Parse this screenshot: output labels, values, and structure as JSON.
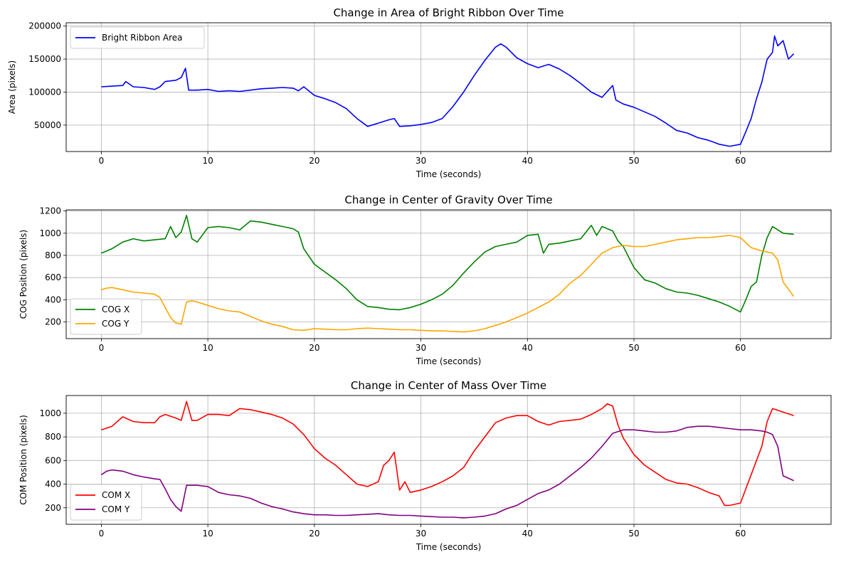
{
  "chart_data": [
    {
      "type": "line",
      "title": "Change in Area of Bright Ribbon Over Time",
      "xlabel": "Time (seconds)",
      "ylabel": "Area (pixels)",
      "xlim": [
        -3.3,
        68.5
      ],
      "ylim": [
        10000,
        205000
      ],
      "xticks": [
        0,
        10,
        20,
        30,
        40,
        50,
        60
      ],
      "xtick_labels": [
        "0",
        "10",
        "20",
        "30",
        "40",
        "50",
        "60"
      ],
      "yticks": [
        50000,
        100000,
        150000,
        200000
      ],
      "ytick_labels": [
        "50000",
        "100000",
        "150000",
        "200000"
      ],
      "grid": true,
      "legend_position": "upper-left",
      "series": [
        {
          "name": "Bright Ribbon Area",
          "color": "#0000ff",
          "x": [
            0,
            1,
            2,
            2.3,
            3,
            4,
            5,
            5.5,
            6,
            7,
            7.5,
            7.9,
            8.2,
            9,
            10,
            11,
            12,
            13,
            14,
            15,
            16,
            17,
            18,
            18.5,
            19,
            20,
            21,
            22,
            23,
            24,
            25,
            26,
            27,
            27.5,
            28,
            29,
            30,
            31,
            32,
            33,
            34,
            35,
            36,
            37,
            37.5,
            38,
            39,
            40,
            41,
            42,
            43,
            44,
            45,
            46,
            47,
            48,
            48.3,
            49,
            50,
            51,
            52,
            53,
            54,
            55,
            56,
            57,
            58,
            59,
            60,
            60.5,
            61,
            61.5,
            62,
            62.5,
            63,
            63.2,
            63.5,
            64,
            64.5,
            65
          ],
          "y": [
            108000,
            109000,
            110000,
            116000,
            108000,
            107000,
            104000,
            108000,
            116000,
            118000,
            122000,
            136000,
            103000,
            103000,
            104000,
            101000,
            102000,
            101000,
            103000,
            105000,
            106000,
            107000,
            106000,
            102000,
            108000,
            95000,
            90000,
            84000,
            75000,
            60000,
            48000,
            53000,
            58000,
            60000,
            48000,
            49000,
            51000,
            54000,
            60000,
            78000,
            100000,
            125000,
            148000,
            168000,
            173000,
            168000,
            152000,
            143000,
            137000,
            142000,
            135000,
            125000,
            113000,
            100000,
            92000,
            110000,
            88000,
            82000,
            77000,
            70000,
            63000,
            53000,
            42000,
            38000,
            31000,
            27000,
            21000,
            18000,
            21000,
            40000,
            60000,
            90000,
            115000,
            150000,
            160000,
            185000,
            170000,
            178000,
            150000,
            158000
          ]
        }
      ]
    },
    {
      "type": "line",
      "title": "Change in Center of Gravity Over Time",
      "xlabel": "Time (seconds)",
      "ylabel": "COG Position (pixels)",
      "xlim": [
        -3.3,
        68.5
      ],
      "ylim": [
        50,
        1210
      ],
      "xticks": [
        0,
        10,
        20,
        30,
        40,
        50,
        60
      ],
      "xtick_labels": [
        "0",
        "10",
        "20",
        "30",
        "40",
        "50",
        "60"
      ],
      "yticks": [
        200,
        400,
        600,
        800,
        1000,
        1200
      ],
      "ytick_labels": [
        "200",
        "400",
        "600",
        "800",
        "1000",
        "1200"
      ],
      "grid": true,
      "legend_position": "lower-left",
      "series": [
        {
          "name": "COG X",
          "color": "#008000",
          "x": [
            0,
            1,
            2,
            3,
            4,
            5,
            6,
            6.5,
            7,
            7.5,
            8,
            8.5,
            9,
            10,
            11,
            12,
            13,
            14,
            15,
            16,
            17,
            18,
            18.5,
            19,
            20,
            21,
            22,
            23,
            24,
            25,
            26,
            27,
            28,
            29,
            30,
            31,
            32,
            33,
            34,
            35,
            36,
            37,
            38,
            39,
            40,
            41,
            41.5,
            42,
            43,
            44,
            45,
            46,
            46.5,
            47,
            48,
            48.5,
            49,
            50,
            51,
            52,
            53,
            54,
            55,
            56,
            57,
            58,
            59,
            60,
            60.5,
            61,
            61.5,
            62,
            62.5,
            63,
            64,
            65
          ],
          "y": [
            820,
            860,
            920,
            950,
            930,
            940,
            950,
            1060,
            960,
            1010,
            1160,
            950,
            920,
            1050,
            1060,
            1050,
            1030,
            1110,
            1100,
            1080,
            1060,
            1040,
            1010,
            860,
            720,
            650,
            580,
            500,
            400,
            340,
            330,
            315,
            310,
            330,
            360,
            400,
            450,
            530,
            640,
            740,
            830,
            880,
            900,
            920,
            980,
            990,
            820,
            900,
            910,
            930,
            950,
            1070,
            980,
            1060,
            1020,
            930,
            880,
            690,
            580,
            550,
            500,
            470,
            460,
            440,
            410,
            380,
            340,
            290,
            400,
            520,
            560,
            800,
            960,
            1060,
            1000,
            990
          ]
        },
        {
          "name": "COG Y",
          "color": "#ffa500",
          "x": [
            0,
            0.5,
            1,
            2,
            3,
            4,
            5,
            5.5,
            6,
            6.5,
            7,
            7.5,
            8,
            8.5,
            9,
            10,
            11,
            12,
            13,
            14,
            15,
            16,
            17,
            18,
            19,
            20,
            21,
            22,
            23,
            24,
            25,
            26,
            27,
            28,
            29,
            30,
            31,
            32,
            33,
            34,
            35,
            36,
            37,
            38,
            39,
            40,
            41,
            42,
            43,
            44,
            45,
            46,
            47,
            48,
            49,
            50,
            51,
            52,
            53,
            54,
            55,
            56,
            57,
            58,
            59,
            60,
            61,
            62,
            63,
            63.5,
            64,
            65
          ],
          "y": [
            490,
            505,
            510,
            490,
            470,
            460,
            450,
            420,
            330,
            240,
            190,
            180,
            380,
            390,
            380,
            350,
            320,
            300,
            290,
            250,
            210,
            180,
            160,
            130,
            125,
            140,
            135,
            130,
            130,
            140,
            145,
            140,
            135,
            130,
            130,
            125,
            120,
            120,
            115,
            110,
            120,
            140,
            170,
            200,
            240,
            280,
            330,
            380,
            450,
            550,
            620,
            720,
            820,
            870,
            890,
            880,
            880,
            900,
            920,
            940,
            950,
            960,
            960,
            970,
            980,
            960,
            870,
            840,
            820,
            760,
            560,
            430
          ]
        }
      ]
    },
    {
      "type": "line",
      "title": "Change in Center of Mass Over Time",
      "xlabel": "Time (seconds)",
      "ylabel": "COM Position (pixels)",
      "xlim": [
        -3.3,
        68.5
      ],
      "ylim": [
        60,
        1150
      ],
      "xticks": [
        0,
        10,
        20,
        30,
        40,
        50,
        60
      ],
      "xtick_labels": [
        "0",
        "10",
        "20",
        "30",
        "40",
        "50",
        "60"
      ],
      "yticks": [
        200,
        400,
        600,
        800,
        1000
      ],
      "ytick_labels": [
        "200",
        "400",
        "600",
        "800",
        "1000"
      ],
      "grid": true,
      "legend_position": "lower-left",
      "series": [
        {
          "name": "COM X",
          "color": "#ff0000",
          "x": [
            0,
            1,
            2,
            3,
            4,
            5,
            5.5,
            6,
            7,
            7.5,
            8,
            8.5,
            9,
            10,
            11,
            12,
            13,
            14,
            15,
            16,
            17,
            18,
            19,
            20,
            21,
            22,
            23,
            24,
            25,
            26,
            26.5,
            27,
            27.5,
            28,
            28.5,
            29,
            30,
            31,
            32,
            33,
            34,
            35,
            36,
            37,
            38,
            39,
            40,
            41,
            42,
            43,
            44,
            45,
            46,
            47,
            47.5,
            48,
            48.5,
            49,
            50,
            51,
            52,
            53,
            54,
            55,
            56,
            57,
            58,
            58.5,
            59,
            60,
            61,
            62,
            62.5,
            63,
            64,
            65
          ],
          "y": [
            860,
            890,
            970,
            930,
            920,
            920,
            970,
            990,
            960,
            940,
            1100,
            940,
            940,
            990,
            990,
            980,
            1040,
            1030,
            1010,
            990,
            960,
            910,
            820,
            700,
            620,
            560,
            480,
            400,
            380,
            420,
            560,
            600,
            670,
            350,
            420,
            330,
            350,
            380,
            420,
            470,
            540,
            680,
            800,
            920,
            960,
            980,
            980,
            930,
            900,
            930,
            940,
            950,
            990,
            1040,
            1080,
            1060,
            900,
            790,
            650,
            560,
            500,
            440,
            410,
            400,
            370,
            330,
            300,
            220,
            220,
            240,
            480,
            720,
            930,
            1040,
            1010,
            980
          ]
        },
        {
          "name": "COM Y",
          "color": "#800080",
          "x": [
            0,
            0.5,
            1,
            2,
            3,
            4,
            5,
            5.5,
            6,
            6.5,
            7,
            7.5,
            8,
            9,
            10,
            11,
            12,
            13,
            14,
            15,
            16,
            17,
            18,
            19,
            20,
            21,
            22,
            23,
            24,
            25,
            26,
            27,
            28,
            29,
            30,
            31,
            32,
            33,
            34,
            35,
            36,
            37,
            38,
            39,
            40,
            41,
            42,
            43,
            44,
            45,
            46,
            47,
            48,
            49,
            50,
            51,
            52,
            53,
            54,
            55,
            56,
            57,
            58,
            59,
            60,
            61,
            62,
            62.5,
            63,
            63.5,
            64,
            65
          ],
          "y": [
            480,
            510,
            520,
            510,
            480,
            460,
            445,
            440,
            360,
            270,
            210,
            170,
            390,
            390,
            380,
            330,
            310,
            300,
            280,
            240,
            210,
            190,
            165,
            150,
            140,
            140,
            135,
            135,
            140,
            145,
            150,
            140,
            135,
            135,
            130,
            125,
            120,
            120,
            115,
            120,
            130,
            150,
            190,
            220,
            270,
            320,
            350,
            400,
            470,
            540,
            620,
            720,
            830,
            860,
            860,
            850,
            840,
            840,
            850,
            880,
            890,
            890,
            880,
            870,
            860,
            860,
            850,
            840,
            820,
            720,
            470,
            430
          ]
        }
      ]
    }
  ]
}
